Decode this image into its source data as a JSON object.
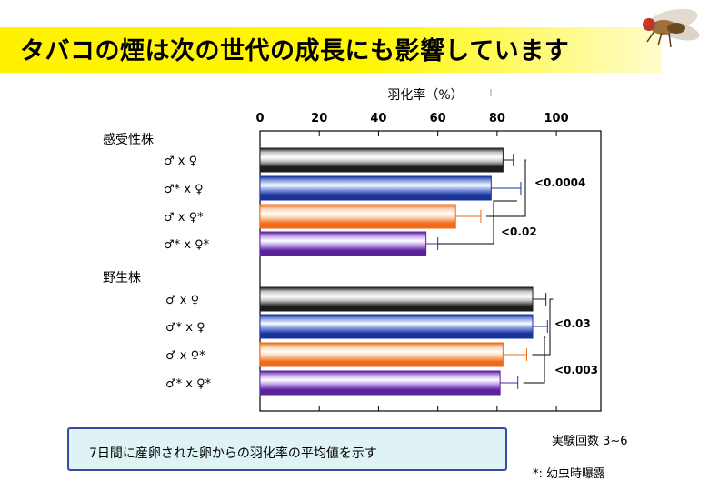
{
  "title": "タバコの煙は次の世代の成長にも影響しています",
  "chart_data": {
    "type": "bar",
    "orientation": "horizontal",
    "xlabel": "羽化率（%）",
    "xlim": [
      0,
      115
    ],
    "xticks": [
      0,
      20,
      40,
      60,
      80,
      100
    ],
    "groups": [
      {
        "name": "感受性株",
        "bars": [
          {
            "label": "♂ x ♀",
            "value": 82,
            "error": 3.5,
            "color": "black"
          },
          {
            "label": "♂* x ♀",
            "value": 78,
            "error": 10,
            "color": "blue"
          },
          {
            "label": "♂ x ♀*",
            "value": 66,
            "error": 8.5,
            "color": "orange"
          },
          {
            "label": "♂* x ♀*",
            "value": 56,
            "error": 4,
            "color": "purple"
          }
        ],
        "comparisons": [
          {
            "label": "<0.0004"
          },
          {
            "label": "<0.02"
          }
        ]
      },
      {
        "name": "野生株",
        "bars": [
          {
            "label": "♂ x ♀",
            "value": 92,
            "error": 4.5,
            "color": "black"
          },
          {
            "label": "♂* x ♀",
            "value": 92,
            "error": 5,
            "color": "blue"
          },
          {
            "label": "♂ x ♀*",
            "value": 82,
            "error": 8,
            "color": "orange"
          },
          {
            "label": "♂* x ♀*",
            "value": 81,
            "error": 6,
            "color": "purple"
          }
        ],
        "comparisons": [
          {
            "label": "<0.03"
          },
          {
            "label": "<0.003"
          }
        ]
      }
    ],
    "colors": {
      "black": [
        "#1c1c1c",
        "#c8c8c8"
      ],
      "blue": [
        "#1a3399",
        "#8aa3e6"
      ],
      "orange": [
        "#f06a1a",
        "#ffd3b0"
      ],
      "purple": [
        "#5a2399",
        "#c2a3ea"
      ]
    },
    "grid": false
  },
  "note": "7日間に産卵された卵からの羽化率の平均値を示す",
  "experiments": "実験回数 3~6",
  "exposure_note": "*: 幼虫時曝露"
}
